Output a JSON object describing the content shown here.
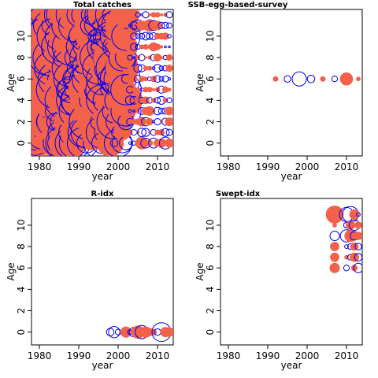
{
  "colors": {
    "positive": "#f4614a",
    "negative": "#0000ee"
  },
  "chart_data": [
    {
      "type": "scatter",
      "title": "Total catches",
      "xlabel": "year",
      "ylabel": "Age",
      "xlim": [
        1978,
        2014
      ],
      "ylim": [
        -1.2,
        12.5
      ],
      "x_ticks": [
        1980,
        1990,
        2000,
        2010
      ],
      "y_ticks": [
        0,
        2,
        4,
        6,
        8,
        10
      ],
      "mode": "dense_bubble_residuals",
      "years": [
        1978,
        2013
      ],
      "ages": [
        0,
        12
      ],
      "size_rule": "large_early_small_late"
    },
    {
      "type": "scatter",
      "title": "SSB-egg-based-survey",
      "xlabel": "year",
      "ylabel": "Age",
      "xlim": [
        1978,
        2014
      ],
      "ylim": [
        -1.2,
        12.5
      ],
      "x_ticks": [
        1980,
        1990,
        2000,
        2010
      ],
      "y_ticks": [
        0,
        2,
        4,
        6,
        8,
        10
      ],
      "points": [
        {
          "year": 1992,
          "age": 6,
          "sign": 1,
          "size": 0.25
        },
        {
          "year": 1995,
          "age": 6,
          "sign": -1,
          "size": 0.35
        },
        {
          "year": 1998,
          "age": 6,
          "sign": -1,
          "size": 0.75
        },
        {
          "year": 2001,
          "age": 6,
          "sign": -1,
          "size": 0.4
        },
        {
          "year": 2004,
          "age": 6,
          "sign": 1,
          "size": 0.25
        },
        {
          "year": 2007,
          "age": 6,
          "sign": -1,
          "size": 0.3
        },
        {
          "year": 2010,
          "age": 6,
          "sign": 1,
          "size": 0.65
        },
        {
          "year": 2013,
          "age": 6,
          "sign": 1,
          "size": 0.2
        }
      ]
    },
    {
      "type": "scatter",
      "title": "R-idx",
      "xlabel": "year",
      "ylabel": "Age",
      "xlim": [
        1978,
        2014
      ],
      "ylim": [
        -1.2,
        12.5
      ],
      "x_ticks": [
        1980,
        1990,
        2000,
        2010
      ],
      "y_ticks": [
        0,
        2,
        4,
        6,
        8,
        10
      ],
      "points": [
        {
          "year": 1998,
          "age": 0,
          "sign": -1,
          "size": 0.4
        },
        {
          "year": 1999,
          "age": 0,
          "sign": -1,
          "size": 0.6
        },
        {
          "year": 2000,
          "age": 0,
          "sign": -1,
          "size": 0.3
        },
        {
          "year": 2001,
          "age": 0,
          "sign": 1,
          "size": 0.2
        },
        {
          "year": 2002,
          "age": 0,
          "sign": 1,
          "size": 0.55
        },
        {
          "year": 2003,
          "age": 0,
          "sign": -1,
          "size": 0.25
        },
        {
          "year": 2004,
          "age": 0,
          "sign": -1,
          "size": 0.5
        },
        {
          "year": 2005,
          "age": 0,
          "sign": 1,
          "size": 0.65
        },
        {
          "year": 2006,
          "age": 0,
          "sign": -1,
          "size": 0.7
        },
        {
          "year": 2007,
          "age": 0,
          "sign": 1,
          "size": 0.55
        },
        {
          "year": 2008,
          "age": 0,
          "sign": 1,
          "size": 0.4
        },
        {
          "year": 2009,
          "age": 0,
          "sign": 1,
          "size": 0.3
        },
        {
          "year": 2010,
          "age": 0,
          "sign": -1,
          "size": 0.35
        },
        {
          "year": 2011,
          "age": 0,
          "sign": -1,
          "size": 1.0
        },
        {
          "year": 2012,
          "age": 0,
          "sign": 1,
          "size": 0.5
        },
        {
          "year": 2013,
          "age": 0,
          "sign": 1,
          "size": 0.45
        }
      ]
    },
    {
      "type": "scatter",
      "title": "Swept-idx",
      "xlabel": "year",
      "ylabel": "Age",
      "xlim": [
        1978,
        2014
      ],
      "ylim": [
        -1.2,
        12.5
      ],
      "x_ticks": [
        1980,
        1990,
        2000,
        2010
      ],
      "y_ticks": [
        0,
        2,
        4,
        6,
        8,
        10
      ],
      "points": [
        {
          "year": 2007,
          "age": 11,
          "sign": 1,
          "size": 0.9
        },
        {
          "year": 2010,
          "age": 11,
          "sign": -1,
          "size": 0.75
        },
        {
          "year": 2011,
          "age": 11,
          "sign": -1,
          "size": 0.85
        },
        {
          "year": 2012,
          "age": 11,
          "sign": 1,
          "size": 0.5
        },
        {
          "year": 2013,
          "age": 11,
          "sign": -1,
          "size": 0.2
        },
        {
          "year": 2007,
          "age": 10,
          "sign": 1,
          "size": 0.2
        },
        {
          "year": 2010,
          "age": 10,
          "sign": -1,
          "size": 0.3
        },
        {
          "year": 2011,
          "age": 10,
          "sign": 1,
          "size": 0.45
        },
        {
          "year": 2012,
          "age": 10,
          "sign": -1,
          "size": 0.55
        },
        {
          "year": 2013,
          "age": 10,
          "sign": 1,
          "size": 0.35
        },
        {
          "year": 2007,
          "age": 9,
          "sign": -1,
          "size": 0.5
        },
        {
          "year": 2010,
          "age": 9,
          "sign": -1,
          "size": 0.65
        },
        {
          "year": 2011,
          "age": 9,
          "sign": 1,
          "size": 0.6
        },
        {
          "year": 2012,
          "age": 9,
          "sign": -1,
          "size": 0.45
        },
        {
          "year": 2013,
          "age": 9,
          "sign": 1,
          "size": 0.4
        },
        {
          "year": 2007,
          "age": 8,
          "sign": 1,
          "size": 0.45
        },
        {
          "year": 2010,
          "age": 8,
          "sign": -1,
          "size": 0.2
        },
        {
          "year": 2011,
          "age": 8,
          "sign": -1,
          "size": 0.3
        },
        {
          "year": 2012,
          "age": 8,
          "sign": 1,
          "size": 0.4
        },
        {
          "year": 2013,
          "age": 8,
          "sign": -1,
          "size": 0.35
        },
        {
          "year": 2007,
          "age": 7,
          "sign": 1,
          "size": 0.45
        },
        {
          "year": 2010,
          "age": 7,
          "sign": 1,
          "size": 0.2
        },
        {
          "year": 2011,
          "age": 7,
          "sign": -1,
          "size": 0.3
        },
        {
          "year": 2012,
          "age": 7,
          "sign": 1,
          "size": 0.45
        },
        {
          "year": 2013,
          "age": 7,
          "sign": -1,
          "size": 0.4
        },
        {
          "year": 2007,
          "age": 6,
          "sign": 1,
          "size": 0.5
        },
        {
          "year": 2010,
          "age": 6,
          "sign": -1,
          "size": 0.3
        },
        {
          "year": 2012,
          "age": 6,
          "sign": 1,
          "size": 0.3
        },
        {
          "year": 2013,
          "age": 6,
          "sign": -1,
          "size": 0.5
        }
      ]
    }
  ]
}
